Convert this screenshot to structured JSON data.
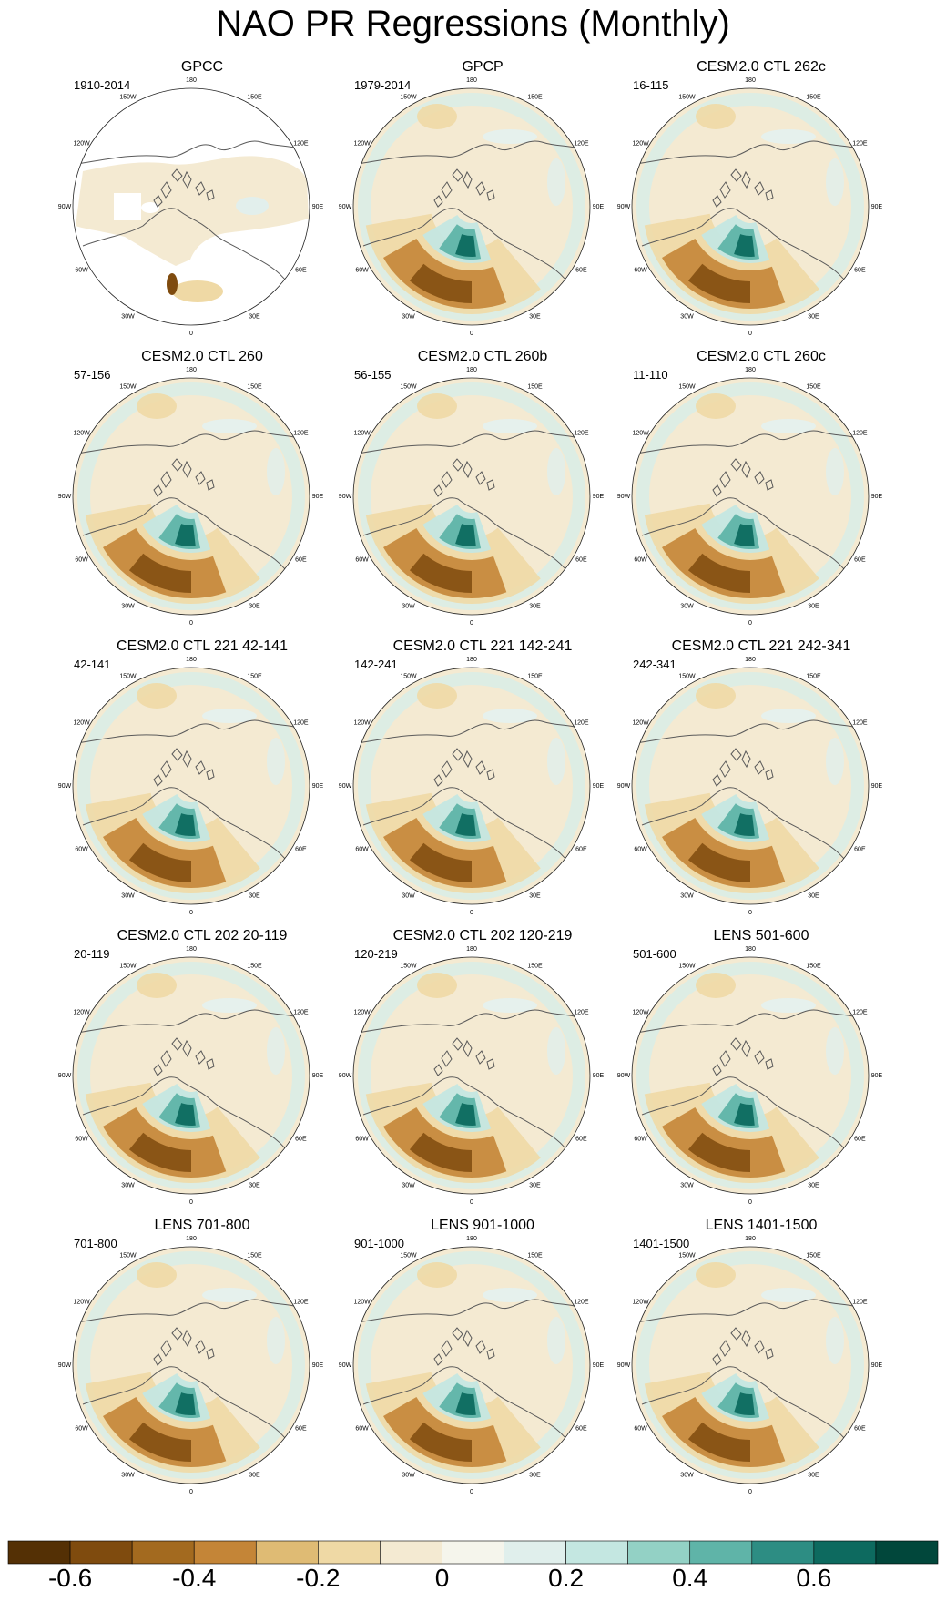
{
  "title": "NAO PR Regressions (Monthly)",
  "longitude_labels": [
    "180",
    "150E",
    "120E",
    "90E",
    "60E",
    "30E",
    "0",
    "30W",
    "60W",
    "90W",
    "120W",
    "150W"
  ],
  "panels": [
    {
      "title": "GPCC",
      "years": "1910-2014",
      "masked_ocean": true
    },
    {
      "title": "GPCP",
      "years": "1979-2014"
    },
    {
      "title": "CESM2.0 CTL 262c",
      "years": "16-115"
    },
    {
      "title": "CESM2.0 CTL 260",
      "years": "57-156"
    },
    {
      "title": "CESM2.0 CTL 260b",
      "years": "56-155"
    },
    {
      "title": "CESM2.0 CTL 260c",
      "years": "11-110"
    },
    {
      "title": "CESM2.0 CTL 221 42-141",
      "years": "42-141"
    },
    {
      "title": "CESM2.0 CTL 221 142-241",
      "years": "142-241"
    },
    {
      "title": "CESM2.0 CTL 221 242-341",
      "years": "242-341"
    },
    {
      "title": "CESM2.0 CTL 202 20-119",
      "years": "20-119"
    },
    {
      "title": "CESM2.0 CTL 202 120-219",
      "years": "120-219"
    },
    {
      "title": "LENS 501-600",
      "years": "501-600"
    },
    {
      "title": "LENS 701-800",
      "years": "701-800"
    },
    {
      "title": "LENS 901-1000",
      "years": "901-1000"
    },
    {
      "title": "LENS 1401-1500",
      "years": "1401-1500"
    }
  ],
  "colorbar": {
    "colors": [
      "#543005",
      "#7f4b0e",
      "#a36a1f",
      "#c48537",
      "#dfbb74",
      "#efd9a5",
      "#f4ead2",
      "#f5f5ec",
      "#e0efec",
      "#c4e7e1",
      "#93d1c5",
      "#5fb4a8",
      "#2d8d83",
      "#0d6a5f",
      "#01473b"
    ],
    "labels": [
      "-0.6",
      "-0.4",
      "-0.2",
      "0",
      "0.2",
      "0.4",
      "0.6"
    ],
    "label_values": [
      -0.6,
      -0.4,
      -0.2,
      0,
      0.2,
      0.4,
      0.6
    ],
    "levels": [
      -0.7,
      -0.6,
      -0.5,
      -0.4,
      -0.3,
      -0.2,
      -0.1,
      0,
      0.1,
      0.2,
      0.3,
      0.4,
      0.5,
      0.6,
      0.7
    ]
  }
}
